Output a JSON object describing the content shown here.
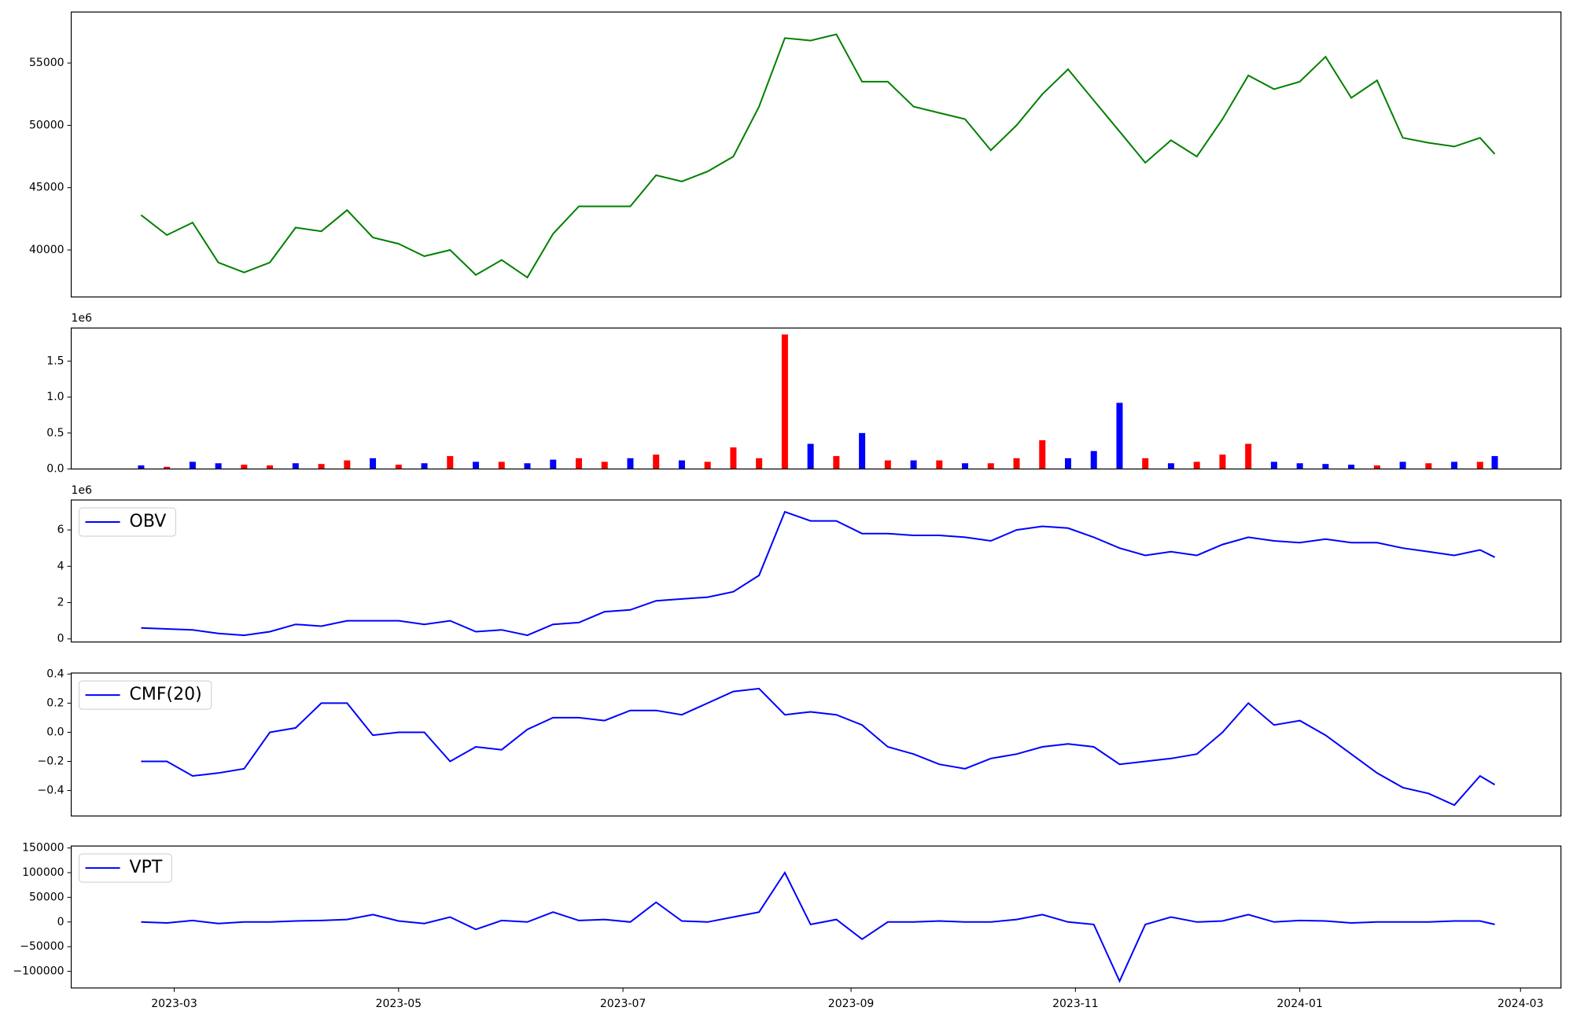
{
  "chart_data": {
    "type": "multi-panel",
    "x": [
      50,
      57,
      64,
      71,
      78,
      85,
      92,
      99,
      106,
      113,
      120,
      127,
      134,
      141,
      148,
      155,
      162,
      169,
      176,
      183,
      190,
      197,
      204,
      211,
      218,
      225,
      232,
      239,
      246,
      253,
      260,
      267,
      274,
      281,
      288,
      295,
      302,
      309,
      316,
      323,
      330,
      337,
      344,
      351,
      358,
      365,
      372,
      379,
      386,
      393,
      400,
      407,
      414,
      418
    ],
    "xlim": [
      31,
      436
    ],
    "xticks": [
      {
        "value": 59,
        "label": "2023-03"
      },
      {
        "value": 120,
        "label": "2023-05"
      },
      {
        "value": 181,
        "label": "2023-07"
      },
      {
        "value": 243,
        "label": "2023-09"
      },
      {
        "value": 304,
        "label": "2023-11"
      },
      {
        "value": 365,
        "label": "2024-01"
      },
      {
        "value": 425,
        "label": "2024-03"
      }
    ],
    "panels": [
      {
        "type": "line",
        "ylim": [
          36230,
          59090
        ],
        "yticks": [
          40000,
          45000,
          50000,
          55000
        ],
        "series": [
          {
            "color": "#008000",
            "values": [
              42800,
              41200,
              42200,
              39000,
              38200,
              39000,
              41800,
              41500,
              43200,
              41000,
              40500,
              39500,
              40000,
              38000,
              39200,
              37800,
              41300,
              43500,
              43500,
              43500,
              46000,
              45500,
              46300,
              47500,
              51500,
              57000,
              56800,
              57300,
              53500,
              53500,
              51500,
              51000,
              50500,
              48000,
              50000,
              52500,
              54500,
              52000,
              49500,
              47000,
              48800,
              47500,
              50500,
              54000,
              52900,
              53500,
              55500,
              52200,
              53600,
              49000,
              48600,
              48300,
              49000,
              47700
            ]
          }
        ]
      },
      {
        "type": "bar",
        "offset_label": "1e6",
        "ylim": [
          0,
          1.96
        ],
        "yticks": [
          {
            "value": 0,
            "label": "0.0"
          },
          {
            "value": 0.5,
            "label": "0.5"
          },
          {
            "value": 1,
            "label": "1.0"
          },
          {
            "value": 1.5,
            "label": "1.5"
          }
        ],
        "values": [
          0.05,
          0.03,
          0.1,
          0.08,
          0.06,
          0.05,
          0.08,
          0.07,
          0.12,
          0.15,
          0.06,
          0.08,
          0.18,
          0.1,
          0.1,
          0.08,
          0.13,
          0.15,
          0.1,
          0.15,
          0.2,
          0.12,
          0.1,
          0.3,
          0.15,
          1.87,
          0.35,
          0.18,
          0.5,
          0.12,
          0.12,
          0.12,
          0.08,
          0.08,
          0.15,
          0.4,
          0.15,
          0.25,
          0.92,
          0.15,
          0.08,
          0.1,
          0.2,
          0.35,
          0.1,
          0.08,
          0.07,
          0.06,
          0.05,
          0.1,
          0.08,
          0.1,
          0.1,
          0.18
        ],
        "colors": [
          "#0000ff",
          "#ff0000",
          "#0000ff",
          "#0000ff",
          "#ff0000",
          "#ff0000",
          "#0000ff",
          "#ff0000",
          "#ff0000",
          "#0000ff",
          "#ff0000",
          "#0000ff",
          "#ff0000",
          "#0000ff",
          "#ff0000",
          "#0000ff",
          "#0000ff",
          "#ff0000",
          "#ff0000",
          "#0000ff",
          "#ff0000",
          "#0000ff",
          "#ff0000",
          "#ff0000",
          "#ff0000",
          "#ff0000",
          "#0000ff",
          "#ff0000",
          "#0000ff",
          "#ff0000",
          "#0000ff",
          "#ff0000",
          "#0000ff",
          "#ff0000",
          "#ff0000",
          "#ff0000",
          "#0000ff",
          "#0000ff",
          "#0000ff",
          "#ff0000",
          "#0000ff",
          "#ff0000",
          "#ff0000",
          "#ff0000",
          "#0000ff",
          "#0000ff",
          "#0000ff",
          "#0000ff",
          "#ff0000",
          "#0000ff",
          "#ff0000",
          "#0000ff",
          "#ff0000",
          "#0000ff"
        ]
      },
      {
        "type": "line",
        "offset_label": "1e6",
        "ylim": [
          -0.17,
          7.65
        ],
        "yticks": [
          0,
          2,
          4,
          6
        ],
        "legend": "upper left",
        "series": [
          {
            "name": "OBV",
            "color": "#0000ff",
            "values": [
              0.6,
              0.55,
              0.5,
              0.3,
              0.2,
              0.4,
              0.8,
              0.7,
              1.0,
              1.0,
              1.0,
              0.8,
              1.0,
              0.4,
              0.5,
              0.2,
              0.8,
              0.9,
              1.5,
              1.6,
              2.1,
              2.2,
              2.3,
              2.6,
              3.5,
              7.0,
              6.5,
              6.5,
              5.8,
              5.8,
              5.7,
              5.7,
              5.6,
              5.4,
              6.0,
              6.2,
              6.1,
              5.6,
              5.0,
              4.6,
              4.8,
              4.6,
              5.2,
              5.6,
              5.4,
              5.3,
              5.5,
              5.3,
              5.3,
              5.0,
              4.8,
              4.6,
              4.9,
              4.5
            ]
          }
        ]
      },
      {
        "type": "line",
        "ylim": [
          -0.575,
          0.407
        ],
        "yticks": [
          {
            "value": -0.4,
            "label": "−0.4"
          },
          {
            "value": -0.2,
            "label": "−0.2"
          },
          {
            "value": 0,
            "label": "0.0"
          },
          0.2,
          0.4
        ],
        "legend": "upper left",
        "series": [
          {
            "name": "CMF(20)",
            "color": "#0000ff",
            "values": [
              -0.2,
              -0.2,
              -0.3,
              -0.28,
              -0.25,
              0.0,
              0.03,
              0.2,
              0.2,
              -0.02,
              0.0,
              0.0,
              -0.2,
              -0.1,
              -0.12,
              0.02,
              0.1,
              0.1,
              0.08,
              0.15,
              0.15,
              0.12,
              0.2,
              0.28,
              0.3,
              0.12,
              0.14,
              0.12,
              0.05,
              -0.1,
              -0.15,
              -0.22,
              -0.25,
              -0.18,
              -0.15,
              -0.1,
              -0.08,
              -0.1,
              -0.22,
              -0.2,
              -0.18,
              -0.15,
              0.0,
              0.2,
              0.05,
              0.08,
              -0.02,
              -0.15,
              -0.28,
              -0.38,
              -0.42,
              -0.5,
              -0.3,
              -0.36
            ]
          }
        ]
      },
      {
        "type": "line",
        "ylim": [
          -133800,
          154000
        ],
        "yticks": [
          {
            "value": -100000,
            "label": "−100000"
          },
          {
            "value": -50000,
            "label": "−50000"
          },
          0,
          50000,
          100000,
          150000
        ],
        "legend": "upper left",
        "series": [
          {
            "name": "VPT",
            "color": "#0000ff",
            "values": [
              0,
              -2000,
              3000,
              -3000,
              0,
              0,
              2000,
              3000,
              5000,
              15000,
              2000,
              -3000,
              10000,
              -15000,
              3000,
              0,
              20000,
              3000,
              5000,
              0,
              40000,
              2000,
              0,
              10000,
              20000,
              100000,
              -5000,
              5000,
              -35000,
              0,
              0,
              2000,
              0,
              0,
              5000,
              15000,
              0,
              -5000,
              -120000,
              -5000,
              10000,
              0,
              2000,
              15000,
              0,
              3000,
              2000,
              -2000,
              0,
              0,
              0,
              2000,
              2000,
              -5000
            ]
          }
        ]
      }
    ]
  }
}
